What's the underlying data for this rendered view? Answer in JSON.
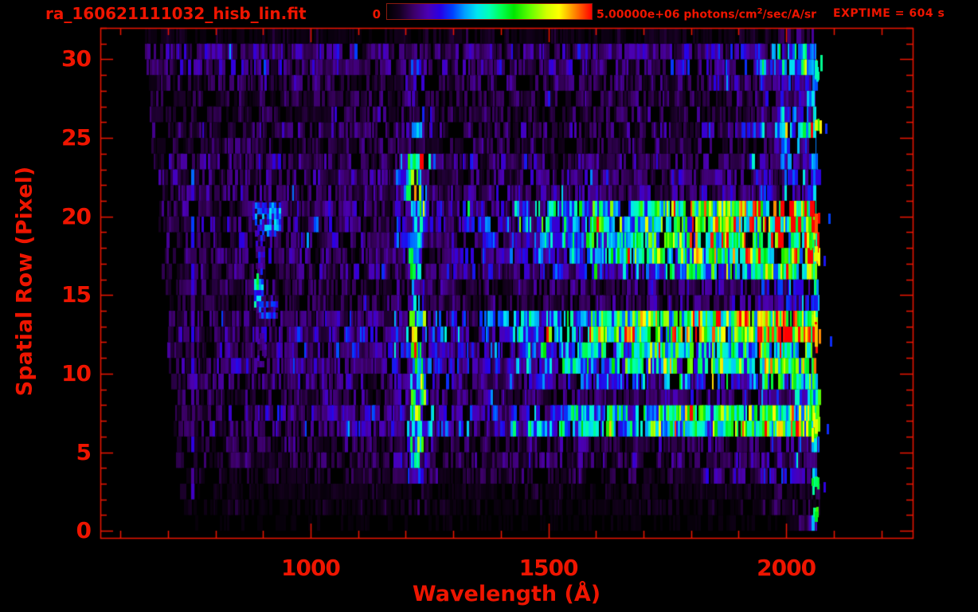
{
  "theme": {
    "background": "#000000",
    "accent": "#ee1500",
    "colorbar_border": "#8b1a0e"
  },
  "header": {
    "filename": "ra_160621111032_hisb_lin.fit",
    "exptime_label": "EXPTIME = 604 s"
  },
  "colorbar": {
    "min_label": "0",
    "max_prefix": "5.00000e+06 photons/cm",
    "max_sup": "2",
    "max_suffix": "/sec/A/sr"
  },
  "chart_data": {
    "type": "heatmap",
    "title": "ra_160621111032_hisb_lin.fit",
    "xlabel": "Wavelength (Å)",
    "ylabel": "Spatial Row (Pixel)",
    "colorbar_min": 0,
    "colorbar_max": "5.00000e+06",
    "colorbar_units": "photons/cm^2/sec/A/sr",
    "exposure_seconds": 604,
    "x_range": [
      558,
      2266
    ],
    "y_range": [
      -0.45,
      32.0
    ],
    "x_ticks": [
      1000,
      1500,
      2000
    ],
    "y_ticks": [
      0,
      5,
      10,
      15,
      20,
      25,
      30
    ],
    "x_minor_step": 100,
    "y_minor_step": 1,
    "palette_stops": [
      [
        0.0,
        "#000000"
      ],
      [
        0.06,
        "#14001e"
      ],
      [
        0.13,
        "#3c0068"
      ],
      [
        0.2,
        "#4b00b4"
      ],
      [
        0.26,
        "#2800e6"
      ],
      [
        0.32,
        "#0040ff"
      ],
      [
        0.38,
        "#00a0ff"
      ],
      [
        0.44,
        "#00e6f0"
      ],
      [
        0.5,
        "#00ffb4"
      ],
      [
        0.56,
        "#00ff50"
      ],
      [
        0.62,
        "#00e600"
      ],
      [
        0.7,
        "#64ff00"
      ],
      [
        0.78,
        "#d2ff00"
      ],
      [
        0.84,
        "#ffff00"
      ],
      [
        0.9,
        "#ffa000"
      ],
      [
        0.95,
        "#ff5000"
      ],
      [
        1.0,
        "#ff0000"
      ]
    ],
    "data_left_edge": {
      "base_wavelength": 730,
      "slope_per_row": 2.5,
      "jitter": 8
    },
    "data_right_edge": {
      "base_wavelength": 2056,
      "jitter": 16
    },
    "wavelength_bin": 10.9,
    "row_bands": [
      {
        "rows": [
          30.6,
          32.2
        ],
        "profile": [
          [
            650,
            0.04
          ],
          [
            1900,
            0.05
          ],
          [
            2060,
            0.12
          ]
        ]
      },
      {
        "rows": [
          29.2,
          30.6
        ],
        "profile": [
          [
            650,
            0.13
          ],
          [
            1500,
            0.13
          ],
          [
            1900,
            0.16
          ],
          [
            2000,
            0.3
          ],
          [
            2060,
            0.45
          ]
        ]
      },
      {
        "rows": [
          27.8,
          29.2
        ],
        "profile": [
          [
            655,
            0.09
          ],
          [
            1800,
            0.11
          ],
          [
            2000,
            0.18
          ],
          [
            2060,
            0.32
          ]
        ]
      },
      {
        "rows": [
          26.4,
          27.8
        ],
        "profile": [
          [
            655,
            0.08
          ],
          [
            1900,
            0.1
          ],
          [
            2060,
            0.3
          ]
        ]
      },
      {
        "rows": [
          25.2,
          26.4
        ],
        "profile": [
          [
            655,
            0.1
          ],
          [
            1850,
            0.12
          ],
          [
            2000,
            0.35
          ],
          [
            2060,
            0.6
          ]
        ]
      },
      {
        "rows": [
          24.0,
          25.2
        ],
        "profile": [
          [
            660,
            0.08
          ],
          [
            1950,
            0.1
          ],
          [
            2060,
            0.28
          ]
        ]
      },
      {
        "rows": [
          21.0,
          24.0
        ],
        "profile": [
          [
            660,
            0.11
          ],
          [
            1400,
            0.13
          ],
          [
            1900,
            0.15
          ],
          [
            2020,
            0.22
          ],
          [
            2060,
            0.35
          ]
        ]
      },
      {
        "rows": [
          18.4,
          21.0
        ],
        "profile": [
          [
            665,
            0.11
          ],
          [
            1200,
            0.14
          ],
          [
            1350,
            0.2
          ],
          [
            1500,
            0.3
          ],
          [
            1650,
            0.42
          ],
          [
            1800,
            0.55
          ],
          [
            1900,
            0.62
          ],
          [
            1980,
            0.68
          ],
          [
            2030,
            0.76
          ],
          [
            2060,
            0.82
          ]
        ]
      },
      {
        "rows": [
          16.9,
          18.4
        ],
        "profile": [
          [
            665,
            0.1
          ],
          [
            1300,
            0.15
          ],
          [
            1450,
            0.22
          ],
          [
            1600,
            0.35
          ],
          [
            1750,
            0.48
          ],
          [
            1900,
            0.56
          ],
          [
            2000,
            0.6
          ],
          [
            2060,
            0.72
          ]
        ]
      },
      {
        "rows": [
          15.9,
          16.9
        ],
        "profile": [
          [
            665,
            0.09
          ],
          [
            1450,
            0.15
          ],
          [
            1650,
            0.25
          ],
          [
            1850,
            0.4
          ],
          [
            2000,
            0.48
          ],
          [
            2060,
            0.58
          ]
        ]
      },
      {
        "rows": [
          14.2,
          15.9
        ],
        "profile": [
          [
            665,
            0.08
          ],
          [
            1500,
            0.1
          ],
          [
            1900,
            0.14
          ],
          [
            2020,
            0.2
          ],
          [
            2060,
            0.32
          ]
        ]
      },
      {
        "rows": [
          12.9,
          14.2
        ],
        "profile": [
          [
            665,
            0.1
          ],
          [
            1250,
            0.16
          ],
          [
            1400,
            0.26
          ],
          [
            1550,
            0.4
          ],
          [
            1700,
            0.52
          ],
          [
            1850,
            0.6
          ],
          [
            1980,
            0.66
          ],
          [
            2060,
            0.72
          ]
        ]
      },
      {
        "rows": [
          11.6,
          12.9
        ],
        "profile": [
          [
            665,
            0.1
          ],
          [
            1250,
            0.18
          ],
          [
            1400,
            0.3
          ],
          [
            1550,
            0.45
          ],
          [
            1700,
            0.56
          ],
          [
            1850,
            0.65
          ],
          [
            1950,
            0.7
          ],
          [
            2030,
            0.75
          ],
          [
            2060,
            0.82
          ]
        ]
      },
      {
        "rows": [
          10.4,
          11.6
        ],
        "profile": [
          [
            665,
            0.1
          ],
          [
            1350,
            0.2
          ],
          [
            1550,
            0.33
          ],
          [
            1750,
            0.45
          ],
          [
            1950,
            0.52
          ],
          [
            2060,
            0.62
          ]
        ]
      },
      {
        "rows": [
          9.4,
          10.4
        ],
        "profile": [
          [
            665,
            0.09
          ],
          [
            1450,
            0.16
          ],
          [
            1700,
            0.25
          ],
          [
            1950,
            0.32
          ],
          [
            2060,
            0.48
          ]
        ]
      },
      {
        "rows": [
          8.2,
          9.4
        ],
        "profile": [
          [
            665,
            0.08
          ],
          [
            1600,
            0.12
          ],
          [
            1950,
            0.17
          ],
          [
            2060,
            0.38
          ]
        ]
      },
      {
        "rows": [
          7.0,
          8.2
        ],
        "profile": [
          [
            665,
            0.09
          ],
          [
            1350,
            0.2
          ],
          [
            1550,
            0.33
          ],
          [
            1750,
            0.45
          ],
          [
            1950,
            0.52
          ],
          [
            2060,
            0.62
          ]
        ]
      },
      {
        "rows": [
          5.9,
          7.0
        ],
        "profile": [
          [
            665,
            0.09
          ],
          [
            1350,
            0.22
          ],
          [
            1550,
            0.38
          ],
          [
            1750,
            0.5
          ],
          [
            1900,
            0.58
          ],
          [
            2010,
            0.64
          ],
          [
            2060,
            0.72
          ]
        ]
      },
      {
        "rows": [
          4.1,
          5.9
        ],
        "profile": [
          [
            670,
            0.08
          ],
          [
            1700,
            0.11
          ],
          [
            2000,
            0.14
          ],
          [
            2060,
            0.25
          ]
        ]
      },
      {
        "rows": [
          2.9,
          4.1
        ],
        "profile": [
          [
            670,
            0.06
          ],
          [
            1800,
            0.08
          ],
          [
            2040,
            0.2
          ],
          [
            2060,
            0.4
          ]
        ]
      },
      {
        "rows": [
          1.0,
          2.9
        ],
        "profile": [
          [
            670,
            0.035
          ],
          [
            1900,
            0.045
          ],
          [
            2060,
            0.1
          ]
        ]
      },
      {
        "rows": [
          -0.5,
          1.0
        ],
        "profile": [
          [
            670,
            0.015
          ],
          [
            2000,
            0.02
          ],
          [
            2060,
            0.3
          ]
        ]
      }
    ],
    "emission_line": {
      "center_wavelength": 1216,
      "core_half_width": 14,
      "halo_half_width": 45,
      "row_strength": [
        {
          "rows": [
            26,
            30
          ],
          "v": 0.06
        },
        {
          "rows": [
            24,
            26
          ],
          "v": 0.12
        },
        {
          "rows": [
            20.8,
            24
          ],
          "v": 0.5
        },
        {
          "rows": [
            18.4,
            20.8
          ],
          "v": 0.22
        },
        {
          "rows": [
            14.2,
            18.4
          ],
          "v": 0.18
        },
        {
          "rows": [
            10.4,
            14.2
          ],
          "v": 0.45
        },
        {
          "rows": [
            8.2,
            10.4
          ],
          "v": 0.3
        },
        {
          "rows": [
            4.1,
            8.2
          ],
          "v": 0.28
        },
        {
          "rows": [
            2.9,
            4.1
          ],
          "v": 0.12
        },
        {
          "rows": [
            1.0,
            2.9
          ],
          "v": 0.05
        }
      ]
    },
    "features": {
      "left_line": {
        "wavelength": 749,
        "rows": [
          2,
          23
        ],
        "v": 0.2,
        "bright_rows": [
          15,
          22.5
        ],
        "bright_v": 0.3
      },
      "bracket": {
        "segments": [
          {
            "rows": [
              18.8,
              20.9
            ],
            "wl": [
              878,
              936
            ],
            "v": 0.3
          },
          {
            "rows": [
              16.4,
              18.8
            ],
            "wl": [
              884,
              901
            ],
            "v": 0.2
          },
          {
            "rows": [
              14.6,
              16.4
            ],
            "wl": [
              882,
              901
            ],
            "v": 0.4
          },
          {
            "rows": [
              13.6,
              14.6
            ],
            "wl": [
              886,
              930
            ],
            "v": 0.24
          },
          {
            "rows": [
              10.5,
              12.6
            ],
            "wl": [
              888,
              904
            ],
            "v": 0.14
          }
        ]
      },
      "edge_specks": [
        {
          "rows": [
            28.5,
            30.5
          ],
          "v": 0.5
        },
        {
          "rows": [
            25.3,
            26.5
          ],
          "v": 0.78
        },
        {
          "rows": [
            18.6,
            20.9
          ],
          "v": 0.95
        },
        {
          "rows": [
            16.9,
            18.6
          ],
          "v": 0.8
        },
        {
          "rows": [
            11.3,
            13.9
          ],
          "v": 0.88
        },
        {
          "rows": [
            5.9,
            7.6
          ],
          "v": 0.8
        },
        {
          "rows": [
            2.6,
            3.8
          ],
          "v": 0.55
        },
        {
          "rows": [
            0.4,
            1.6
          ],
          "v": 0.6
        }
      ],
      "outliers": [
        {
          "row": 25.9,
          "wavelength": 2082,
          "v": 0.3
        },
        {
          "row": 20.2,
          "wavelength": 2088,
          "v": 0.32
        },
        {
          "row": 17.5,
          "wavelength": 2079,
          "v": 0.28
        },
        {
          "row": 12.4,
          "wavelength": 2092,
          "v": 0.3
        },
        {
          "row": 6.8,
          "wavelength": 2085,
          "v": 0.3
        },
        {
          "row": 3.1,
          "wavelength": 2078,
          "v": 0.25
        }
      ]
    },
    "noise": {
      "seed": 42
    }
  }
}
